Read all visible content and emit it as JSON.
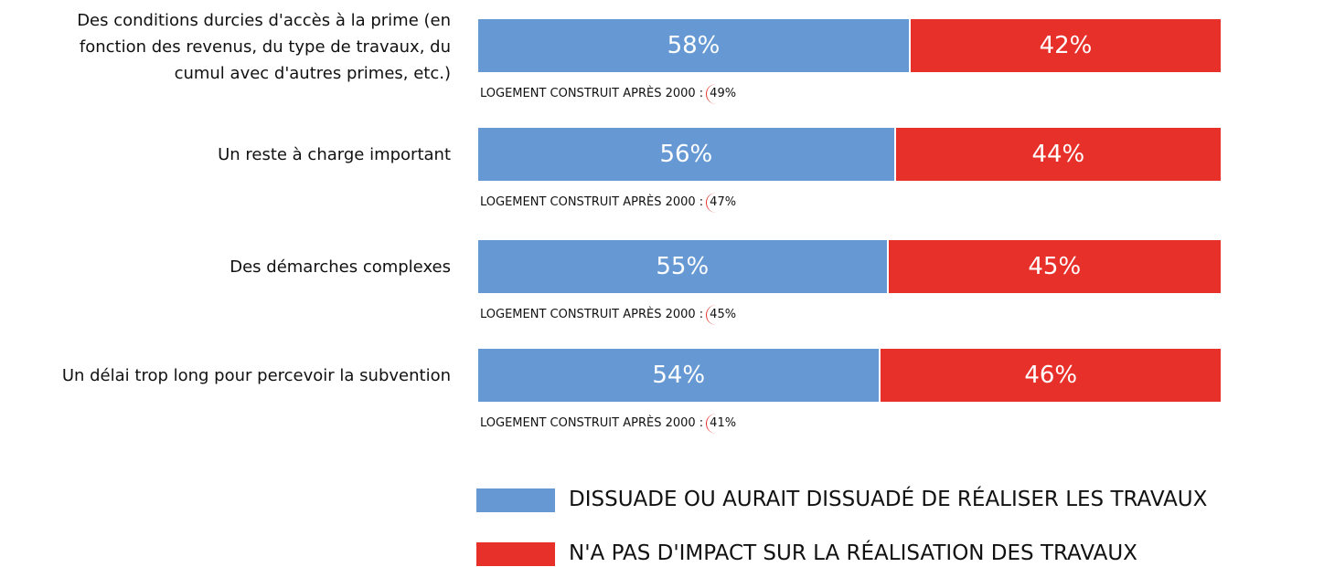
{
  "chart_data": {
    "type": "stacked_barh",
    "categories": [
      "Des conditions durcies d'accès à la prime (en fonction des revenus, du type de travaux, du cumul avec d'autres primes, etc.)",
      "Un reste à charge important",
      "Des démarches complexes",
      "Un délai trop long pour percevoir la subvention"
    ],
    "xlim": [
      0,
      100
    ],
    "series": [
      {
        "name": "DISSUADE OU AURAIT DISSUADÉ DE RÉALISER LES TRAVAUX",
        "color": "#6699d3",
        "values": [
          58,
          56,
          55,
          54
        ],
        "value_labels": [
          "58%",
          "56%",
          "55%",
          "54%"
        ]
      },
      {
        "name": "N'A PAS D'IMPACT SUR LA RÉALISATION DES TRAVAUX",
        "color": "#e8302a",
        "values": [
          42,
          44,
          45,
          46
        ],
        "value_labels": [
          "42%",
          "44%",
          "45%",
          "46%"
        ]
      }
    ],
    "subgroup_labels": [
      "LOGEMENT CONSTRUIT APRÈS 2000 :",
      "LOGEMENT CONSTRUIT APRÈS 2000 :",
      "LOGEMENT CONSTRUIT APRÈS 2000 :",
      "LOGEMENT CONSTRUIT APRÈS 2000 :"
    ],
    "subgroup_values": [
      49,
      47,
      45,
      41
    ],
    "subgroup_value_labels": [
      "49%",
      "47%",
      "45%",
      "41%"
    ]
  }
}
